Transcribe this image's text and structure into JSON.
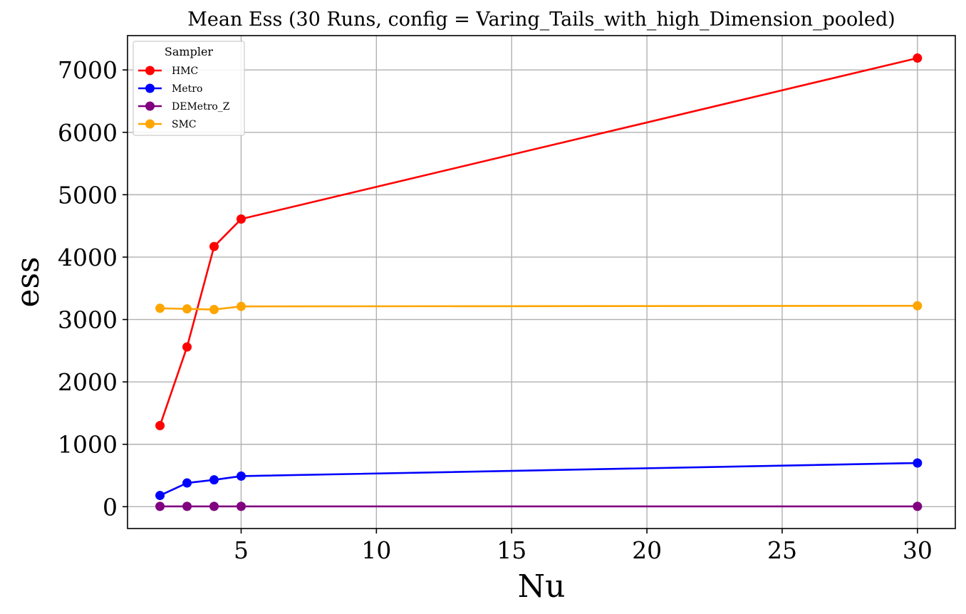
{
  "chart_data": {
    "type": "line",
    "title": "Mean Ess (30 Runs, config = Varing_Tails_with_high_Dimension_pooled)",
    "xlabel": "Nu",
    "ylabel": "ess",
    "x": [
      2,
      3,
      4,
      5,
      30
    ],
    "xlim": [
      0.8,
      31.4
    ],
    "ylim": [
      -350,
      7550
    ],
    "xticks": [
      5,
      10,
      15,
      20,
      25,
      30
    ],
    "yticks": [
      0,
      1000,
      2000,
      3000,
      4000,
      5000,
      6000,
      7000
    ],
    "grid": true,
    "legend": {
      "title": "Sampler",
      "placement": "top-left"
    },
    "series": [
      {
        "name": "HMC",
        "color": "#ff0000",
        "values": [
          1300,
          2560,
          4170,
          4610,
          7190
        ]
      },
      {
        "name": "Metro",
        "color": "#0000ff",
        "values": [
          180,
          380,
          430,
          490,
          700
        ]
      },
      {
        "name": "DEMetro_Z",
        "color": "#800080",
        "values": [
          5,
          5,
          5,
          5,
          5
        ]
      },
      {
        "name": "SMC",
        "color": "#ffa500",
        "values": [
          3180,
          3170,
          3160,
          3210,
          3220
        ]
      }
    ]
  }
}
